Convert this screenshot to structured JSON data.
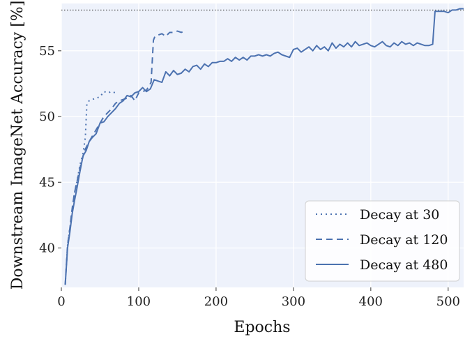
{
  "chart_data": {
    "type": "line",
    "xlabel": "Epochs",
    "ylabel": "Downstream ImageNet Accuracy [%]",
    "xlim": [
      0,
      520
    ],
    "ylim": [
      37,
      58.6
    ],
    "xticks": [
      0,
      100,
      200,
      300,
      400,
      500
    ],
    "yticks": [
      40,
      45,
      50,
      55
    ],
    "grid": true,
    "legend_position": "bottom-right",
    "reference_line": {
      "y": 58.1,
      "style": "dotted",
      "color": "#222222"
    },
    "colors": {
      "background": "#eef2fb",
      "grid": "#ffffff",
      "series": "#4c72b0"
    },
    "series": [
      {
        "name": "Decay at 30",
        "style": "dotted",
        "x": [
          5,
          8,
          11,
          14,
          17,
          20,
          24,
          28,
          31,
          33,
          36,
          40,
          45,
          50,
          55,
          60,
          65,
          70
        ],
        "y": [
          37.2,
          40.2,
          41.5,
          43.0,
          44.2,
          45.0,
          46.3,
          47.2,
          48.4,
          51.0,
          51.2,
          51.3,
          51.4,
          51.5,
          51.9,
          51.8,
          51.9,
          51.8
        ]
      },
      {
        "name": "Decay at 120",
        "style": "dashed",
        "x": [
          5,
          8,
          11,
          14,
          17,
          20,
          25,
          30,
          35,
          40,
          45,
          50,
          55,
          60,
          65,
          70,
          75,
          80,
          85,
          90,
          95,
          100,
          105,
          110,
          113,
          116,
          119,
          121,
          125,
          130,
          135,
          140,
          145,
          150,
          155,
          160
        ],
        "y": [
          37.2,
          40.2,
          41.5,
          43.0,
          44.2,
          45.0,
          46.3,
          47.4,
          48.0,
          48.5,
          49.0,
          49.5,
          50.0,
          50.3,
          50.6,
          51.0,
          51.2,
          51.3,
          51.4,
          51.6,
          51.2,
          51.8,
          51.9,
          52.0,
          52.3,
          52.6,
          55.8,
          56.1,
          56.2,
          56.3,
          56.1,
          56.4,
          56.4,
          56.5,
          56.4,
          56.5
        ]
      },
      {
        "name": "Decay at 480",
        "style": "solid",
        "x": [
          5,
          8,
          11,
          14,
          17,
          20,
          24,
          28,
          32,
          36,
          40,
          45,
          50,
          55,
          60,
          65,
          70,
          75,
          80,
          85,
          90,
          95,
          100,
          105,
          110,
          115,
          120,
          125,
          130,
          135,
          140,
          145,
          150,
          155,
          160,
          165,
          170,
          175,
          180,
          185,
          190,
          195,
          200,
          205,
          210,
          215,
          220,
          225,
          230,
          235,
          240,
          245,
          250,
          255,
          260,
          265,
          270,
          275,
          280,
          285,
          290,
          295,
          300,
          305,
          310,
          315,
          320,
          325,
          330,
          335,
          340,
          345,
          350,
          355,
          360,
          365,
          370,
          375,
          380,
          385,
          390,
          395,
          400,
          405,
          410,
          415,
          420,
          425,
          430,
          435,
          440,
          445,
          450,
          455,
          460,
          465,
          470,
          475,
          480,
          483,
          486,
          490,
          495,
          500,
          505,
          510,
          515,
          520
        ],
        "y": [
          37.2,
          40.0,
          41.2,
          42.6,
          43.6,
          44.5,
          45.8,
          47.0,
          47.4,
          48.1,
          48.4,
          48.7,
          49.5,
          49.6,
          50.0,
          50.3,
          50.6,
          51.0,
          51.2,
          51.6,
          51.5,
          51.8,
          51.9,
          52.2,
          51.9,
          52.1,
          52.8,
          52.7,
          52.6,
          53.4,
          53.1,
          53.5,
          53.2,
          53.3,
          53.6,
          53.4,
          53.8,
          53.9,
          53.6,
          54.0,
          53.8,
          54.1,
          54.1,
          54.2,
          54.2,
          54.4,
          54.2,
          54.5,
          54.3,
          54.5,
          54.3,
          54.6,
          54.6,
          54.7,
          54.6,
          54.7,
          54.6,
          54.8,
          54.9,
          54.7,
          54.6,
          54.5,
          55.1,
          55.2,
          54.9,
          55.1,
          55.3,
          55.0,
          55.4,
          55.1,
          55.3,
          55.0,
          55.6,
          55.2,
          55.5,
          55.3,
          55.6,
          55.3,
          55.7,
          55.4,
          55.5,
          55.6,
          55.4,
          55.3,
          55.5,
          55.7,
          55.4,
          55.3,
          55.6,
          55.4,
          55.7,
          55.5,
          55.6,
          55.4,
          55.6,
          55.5,
          55.4,
          55.4,
          55.5,
          58.0,
          58.0,
          58.0,
          58.0,
          57.9,
          58.1,
          58.1,
          58.2,
          58.2
        ]
      }
    ]
  }
}
